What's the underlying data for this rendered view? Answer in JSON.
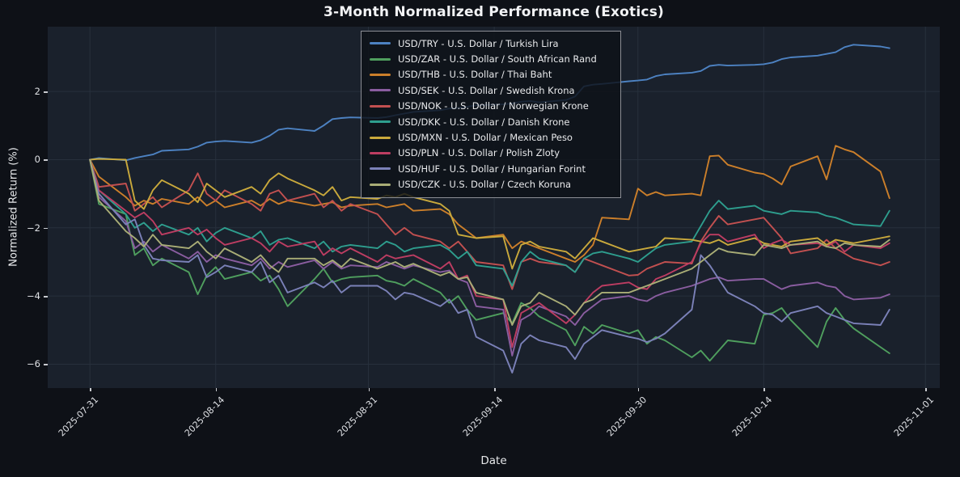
{
  "theme": {
    "figure_bg": "#0e1117",
    "axes_bg": "#1a212c",
    "grid_color": "#27303c",
    "text_color": "#e6e8ea",
    "tick_color": "#dfe1e5",
    "legend_border": "#8b8d94"
  },
  "chart_data": {
    "type": "line",
    "title": "3-Month Normalized Performance (Exotics)",
    "xlabel": "Date",
    "ylabel": "Normalized Return (%)",
    "grid": true,
    "legend_position": "upper center",
    "start_date": "2025-07-31",
    "x_ticks": [
      {
        "label": "2025-07-31",
        "offset": 0
      },
      {
        "label": "2025-08-14",
        "offset": 14
      },
      {
        "label": "2025-08-31",
        "offset": 31
      },
      {
        "label": "2025-09-14",
        "offset": 45
      },
      {
        "label": "2025-09-30",
        "offset": 61
      },
      {
        "label": "2025-10-14",
        "offset": 75
      },
      {
        "label": "2025-11-01",
        "offset": 93
      }
    ],
    "y_ticks": [
      2,
      0,
      -2,
      -4,
      -6
    ],
    "x_domain_days": [
      -4.7,
      94.6
    ],
    "y_domain": [
      -6.7,
      3.9
    ],
    "day_offsets": [
      0,
      1,
      4,
      5,
      6,
      7,
      8,
      11,
      12,
      13,
      14,
      15,
      18,
      19,
      20,
      21,
      22,
      25,
      26,
      27,
      28,
      29,
      32,
      33,
      34,
      35,
      36,
      39,
      40,
      41,
      42,
      43,
      46,
      47,
      48,
      49,
      50,
      53,
      54,
      55,
      56,
      57,
      60,
      61,
      62,
      63,
      64,
      67,
      68,
      69,
      70,
      71,
      74,
      75,
      76,
      77,
      78,
      81,
      82,
      83,
      84,
      85,
      88,
      89
    ],
    "series": [
      {
        "code": "USD/TRY",
        "label": "USD/TRY - U.S. Dollar / Turkish Lira",
        "color": "#4d82c2",
        "values": [
          0,
          0.05,
          -0.02,
          0.05,
          0.1,
          0.15,
          0.26,
          0.3,
          0.38,
          0.5,
          0.53,
          0.55,
          0.5,
          0.57,
          0.7,
          0.88,
          0.92,
          0.84,
          1.0,
          1.19,
          1.22,
          1.24,
          1.22,
          1.25,
          1.3,
          1.35,
          1.4,
          1.45,
          1.5,
          1.52,
          1.55,
          1.6,
          1.62,
          1.65,
          1.7,
          1.72,
          1.68,
          1.75,
          1.85,
          2.15,
          2.2,
          2.22,
          2.3,
          2.32,
          2.35,
          2.45,
          2.5,
          2.55,
          2.6,
          2.75,
          2.78,
          2.76,
          2.78,
          2.8,
          2.85,
          2.95,
          3.0,
          3.05,
          3.1,
          3.15,
          3.3,
          3.37,
          3.32,
          3.27
        ]
      },
      {
        "code": "USD/ZAR",
        "label": "USD/ZAR - U.S. Dollar / South African Rand",
        "color": "#4f9f5e",
        "values": [
          0,
          -1.3,
          -1.6,
          -2.8,
          -2.6,
          -3.1,
          -2.9,
          -3.3,
          -3.95,
          -3.4,
          -3.15,
          -3.5,
          -3.3,
          -3.55,
          -3.4,
          -3.8,
          -4.3,
          -3.5,
          -3.2,
          -3.6,
          -3.5,
          -3.45,
          -3.4,
          -3.55,
          -3.6,
          -3.7,
          -3.5,
          -3.9,
          -4.2,
          -4.0,
          -4.4,
          -4.7,
          -4.5,
          -4.8,
          -4.2,
          -4.35,
          -4.6,
          -5.0,
          -5.45,
          -4.9,
          -5.1,
          -4.85,
          -5.1,
          -5.0,
          -5.4,
          -5.2,
          -5.3,
          -5.8,
          -5.6,
          -5.9,
          -5.6,
          -5.3,
          -5.4,
          -4.55,
          -4.5,
          -4.35,
          -4.7,
          -5.5,
          -4.75,
          -4.35,
          -4.7,
          -4.95,
          -5.5,
          -5.68
        ]
      },
      {
        "code": "USD/THB",
        "label": "USD/THB - U.S. Dollar / Thai Baht",
        "color": "#cc7f2a",
        "values": [
          0,
          -0.5,
          -1.1,
          -1.35,
          -1.2,
          -1.3,
          -1.15,
          -1.3,
          -1.1,
          -1.35,
          -1.2,
          -1.4,
          -1.2,
          -1.35,
          -1.15,
          -1.3,
          -1.2,
          -1.35,
          -1.3,
          -1.25,
          -1.4,
          -1.35,
          -1.3,
          -1.4,
          -1.35,
          -1.3,
          -1.5,
          -1.45,
          -1.6,
          -1.9,
          -2.1,
          -2.3,
          -2.2,
          -2.6,
          -2.4,
          -2.5,
          -2.6,
          -2.9,
          -3.0,
          -2.8,
          -2.5,
          -1.7,
          -1.75,
          -0.85,
          -1.05,
          -0.95,
          -1.05,
          -1.0,
          -1.05,
          0.1,
          0.12,
          -0.15,
          -0.38,
          -0.42,
          -0.55,
          -0.73,
          -0.2,
          0.1,
          -0.58,
          0.41,
          0.3,
          0.22,
          -0.35,
          -1.13
        ]
      },
      {
        "code": "USD/SEK",
        "label": "USD/SEK - U.S. Dollar / Swedish Krona",
        "color": "#8a5da0",
        "values": [
          0,
          -1.1,
          -1.8,
          -2.6,
          -2.4,
          -2.7,
          -2.5,
          -2.9,
          -2.7,
          -3.0,
          -2.8,
          -2.9,
          -3.1,
          -2.9,
          -3.2,
          -3.0,
          -3.15,
          -2.95,
          -3.2,
          -3.0,
          -3.2,
          -3.1,
          -3.15,
          -3.0,
          -3.1,
          -3.2,
          -3.1,
          -3.3,
          -3.25,
          -3.5,
          -3.6,
          -4.3,
          -4.4,
          -5.75,
          -4.7,
          -4.55,
          -4.3,
          -4.6,
          -4.85,
          -4.5,
          -4.3,
          -4.1,
          -4.0,
          -4.1,
          -4.15,
          -4.0,
          -3.9,
          -3.7,
          -3.6,
          -3.5,
          -3.45,
          -3.55,
          -3.5,
          -3.5,
          -3.65,
          -3.8,
          -3.7,
          -3.6,
          -3.7,
          -3.75,
          -4.0,
          -4.1,
          -4.05,
          -3.95
        ]
      },
      {
        "code": "USD/NOK",
        "label": "USD/NOK - U.S. Dollar / Norwegian Krone",
        "color": "#c25050",
        "values": [
          0,
          -0.8,
          -0.7,
          -1.5,
          -1.3,
          -1.1,
          -1.4,
          -0.9,
          -0.4,
          -1.0,
          -1.2,
          -0.9,
          -1.3,
          -1.5,
          -1.0,
          -0.9,
          -1.2,
          -1.0,
          -1.4,
          -1.2,
          -1.5,
          -1.3,
          -1.6,
          -1.9,
          -2.2,
          -2.0,
          -2.2,
          -2.4,
          -2.6,
          -2.4,
          -2.7,
          -3.0,
          -3.1,
          -3.8,
          -3.0,
          -2.9,
          -3.0,
          -3.1,
          -3.3,
          -2.9,
          -3.0,
          -3.1,
          -3.4,
          -3.38,
          -3.2,
          -3.1,
          -3.0,
          -3.05,
          -2.4,
          -2.0,
          -1.65,
          -1.9,
          -1.75,
          -1.7,
          -2.0,
          -2.3,
          -2.75,
          -2.6,
          -2.35,
          -2.6,
          -2.75,
          -2.9,
          -3.1,
          -3.0
        ]
      },
      {
        "code": "USD/DKK",
        "label": "USD/DKK - U.S. Dollar / Danish Krone",
        "color": "#2e9e8e",
        "values": [
          0,
          -0.9,
          -1.6,
          -2.0,
          -1.85,
          -2.1,
          -1.9,
          -2.2,
          -2.0,
          -2.4,
          -2.15,
          -2.0,
          -2.3,
          -2.1,
          -2.5,
          -2.35,
          -2.3,
          -2.6,
          -2.4,
          -2.7,
          -2.55,
          -2.5,
          -2.6,
          -2.4,
          -2.5,
          -2.7,
          -2.6,
          -2.5,
          -2.65,
          -2.9,
          -2.7,
          -3.1,
          -3.2,
          -3.7,
          -3.0,
          -2.7,
          -2.9,
          -3.1,
          -3.3,
          -2.9,
          -2.75,
          -2.7,
          -2.9,
          -3.0,
          -2.8,
          -2.6,
          -2.5,
          -2.4,
          -1.95,
          -1.5,
          -1.2,
          -1.45,
          -1.35,
          -1.5,
          -1.55,
          -1.6,
          -1.5,
          -1.55,
          -1.65,
          -1.7,
          -1.8,
          -1.9,
          -1.95,
          -1.5
        ]
      },
      {
        "code": "USD/MXN",
        "label": "USD/MXN - U.S. Dollar / Mexican Peso",
        "color": "#c9a93c",
        "values": [
          0,
          0.02,
          0.0,
          -1.2,
          -1.45,
          -0.9,
          -0.6,
          -1.0,
          -1.25,
          -0.7,
          -0.9,
          -1.1,
          -0.8,
          -1.0,
          -0.6,
          -0.4,
          -0.55,
          -0.9,
          -1.05,
          -0.8,
          -1.2,
          -1.1,
          -1.15,
          -1.05,
          -1.1,
          -1.0,
          -1.1,
          -1.3,
          -1.5,
          -2.2,
          -2.25,
          -2.3,
          -2.25,
          -3.2,
          -2.5,
          -2.4,
          -2.55,
          -2.7,
          -2.9,
          -2.6,
          -2.3,
          -2.4,
          -2.7,
          -2.65,
          -2.6,
          -2.55,
          -2.3,
          -2.35,
          -2.4,
          -2.45,
          -2.35,
          -2.5,
          -2.3,
          -2.45,
          -2.5,
          -2.55,
          -2.4,
          -2.3,
          -2.5,
          -2.35,
          -2.4,
          -2.45,
          -2.3,
          -2.25
        ]
      },
      {
        "code": "USD/PLN",
        "label": "USD/PLN - U.S. Dollar / Polish Zloty",
        "color": "#bd3d62",
        "values": [
          0,
          -0.9,
          -1.5,
          -1.7,
          -1.55,
          -1.8,
          -2.2,
          -2.0,
          -2.2,
          -2.05,
          -2.3,
          -2.5,
          -2.3,
          -2.45,
          -2.7,
          -2.4,
          -2.55,
          -2.4,
          -2.8,
          -2.6,
          -2.75,
          -2.6,
          -3.0,
          -2.8,
          -2.9,
          -2.85,
          -2.8,
          -3.2,
          -3.0,
          -3.5,
          -3.4,
          -4.0,
          -4.1,
          -5.5,
          -4.5,
          -4.35,
          -4.2,
          -4.8,
          -4.55,
          -4.2,
          -3.9,
          -3.7,
          -3.6,
          -3.75,
          -3.8,
          -3.5,
          -3.4,
          -3.0,
          -2.45,
          -2.2,
          -2.2,
          -2.4,
          -2.2,
          -2.6,
          -2.45,
          -2.35,
          -2.5,
          -2.45,
          -2.55,
          -2.4,
          -2.7,
          -2.5,
          -2.6,
          -2.45
        ]
      },
      {
        "code": "USD/HUF",
        "label": "USD/HUF - U.S. Dollar / Hungarian Forint",
        "color": "#7b81b8",
        "values": [
          0,
          -1.0,
          -1.9,
          -1.75,
          -2.5,
          -2.9,
          -2.95,
          -3.0,
          -2.8,
          -3.45,
          -3.3,
          -3.1,
          -3.3,
          -3.0,
          -3.6,
          -3.4,
          -3.9,
          -3.6,
          -3.75,
          -3.55,
          -3.9,
          -3.7,
          -3.7,
          -3.85,
          -4.1,
          -3.9,
          -3.95,
          -4.3,
          -4.1,
          -4.5,
          -4.4,
          -5.2,
          -5.6,
          -6.25,
          -5.4,
          -5.15,
          -5.3,
          -5.5,
          -5.85,
          -5.4,
          -5.2,
          -5.0,
          -5.2,
          -5.25,
          -5.35,
          -5.25,
          -5.1,
          -4.4,
          -2.8,
          -3.1,
          -3.5,
          -3.9,
          -4.3,
          -4.5,
          -4.55,
          -4.75,
          -4.5,
          -4.3,
          -4.5,
          -4.6,
          -4.7,
          -4.8,
          -4.85,
          -4.4
        ]
      },
      {
        "code": "USD/CZK",
        "label": "USD/CZK - U.S. Dollar / Czech Koruna",
        "color": "#a9ad76",
        "values": [
          0,
          -1.2,
          -2.1,
          -2.3,
          -2.55,
          -2.2,
          -2.5,
          -2.6,
          -2.4,
          -2.7,
          -2.9,
          -2.6,
          -3.0,
          -2.8,
          -3.1,
          -3.3,
          -2.9,
          -2.9,
          -3.1,
          -2.95,
          -3.15,
          -2.9,
          -3.2,
          -3.1,
          -3.0,
          -3.15,
          -3.05,
          -3.4,
          -3.3,
          -3.5,
          -3.45,
          -3.9,
          -4.1,
          -4.85,
          -4.3,
          -4.2,
          -3.9,
          -4.3,
          -4.55,
          -4.2,
          -4.1,
          -3.9,
          -3.9,
          -3.8,
          -3.7,
          -3.6,
          -3.5,
          -3.2,
          -3.0,
          -2.8,
          -2.6,
          -2.7,
          -2.8,
          -2.5,
          -2.55,
          -2.6,
          -2.5,
          -2.4,
          -2.55,
          -2.6,
          -2.45,
          -2.5,
          -2.55,
          -2.35
        ]
      }
    ]
  }
}
